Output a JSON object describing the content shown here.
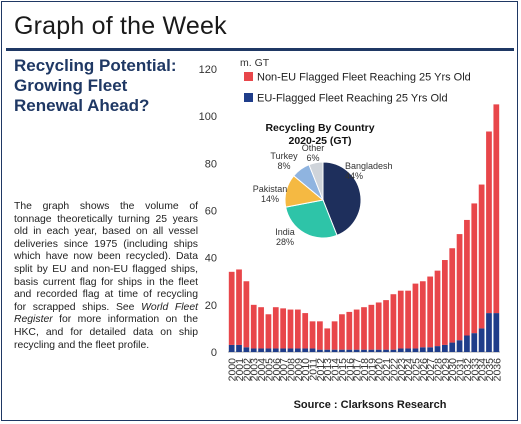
{
  "page": {
    "title": "Graph of the Week",
    "headline": "Recycling Potential: Growing Fleet Renewal Ahead?",
    "body_part1": "The graph shows the volume of tonnage theoretically turning 25 years old in each year, based on all vessel deliveries since 1975 (including ships which have now been recycled). Data split by EU and non-EU flagged ships, basis current flag for ships in the fleet and recorded flag at time of recycling for scrapped ships. See ",
    "body_italic": "World Fleet Register",
    "body_part2": " for more information on the HKC, and for detailed data on ship recycling and the fleet profile.",
    "source": "Source : Clarksons Research"
  },
  "colors": {
    "non_eu": "#e8464a",
    "eu": "#1f3d8a",
    "accent": "#1f3864"
  },
  "chart_data": [
    {
      "type": "bar",
      "stacked": true,
      "ylabel": "m. GT",
      "ylim": [
        0,
        120
      ],
      "yticks": [
        0,
        20,
        40,
        60,
        80,
        100,
        120
      ],
      "grid": false,
      "legend": "top-right",
      "categories": [
        "2000",
        "2001",
        "2002",
        "2003",
        "2004",
        "2005",
        "2006",
        "2007",
        "2008",
        "2009",
        "2010",
        "2011",
        "2012",
        "2013",
        "2014",
        "2015",
        "2016",
        "2017",
        "2018",
        "2019",
        "2020",
        "2021",
        "2022",
        "2023",
        "2024",
        "2025",
        "2026",
        "2027",
        "2028",
        "2029",
        "2030",
        "2031",
        "2032",
        "2033",
        "2034",
        "2035",
        "2036"
      ],
      "series": [
        {
          "name": "EU-Flagged Fleet Reaching 25 Yrs Old",
          "color": "#1f3d8a",
          "values": [
            3,
            3,
            2,
            1.5,
            1.5,
            1.5,
            1.5,
            1.5,
            1.5,
            1.5,
            1.5,
            1.5,
            1,
            1,
            1,
            1,
            1,
            1,
            1,
            1,
            1,
            1,
            1,
            1.5,
            1.5,
            1.5,
            2,
            2,
            2.5,
            3,
            4,
            5,
            7,
            8,
            10,
            16.5,
            16.5
          ]
        },
        {
          "name": "Non-EU Flagged Fleet Reaching 25 Yrs Old",
          "color": "#e8464a",
          "values": [
            31,
            32,
            28,
            18.5,
            17.5,
            14.5,
            17.5,
            17,
            16.5,
            16.5,
            15,
            11.5,
            12,
            9,
            12,
            15,
            16,
            17,
            18,
            19,
            20,
            21,
            23.5,
            24.5,
            24.5,
            27.5,
            28,
            30,
            32,
            36,
            40,
            45,
            49,
            55,
            61,
            77,
            88.5
          ]
        }
      ]
    },
    {
      "type": "pie",
      "title": "Recycling By Country 2020-25 (GT)",
      "slices": [
        {
          "label": "Bangladesh",
          "value": 44,
          "color": "#1e2f5c"
        },
        {
          "label": "India",
          "value": 28,
          "color": "#2ec4a8"
        },
        {
          "label": "Pakistan",
          "value": 14,
          "color": "#f5b942"
        },
        {
          "label": "Turkey",
          "value": 8,
          "color": "#8fb4e0"
        },
        {
          "label": "Other",
          "value": 6,
          "color": "#cfd4da"
        }
      ]
    }
  ]
}
